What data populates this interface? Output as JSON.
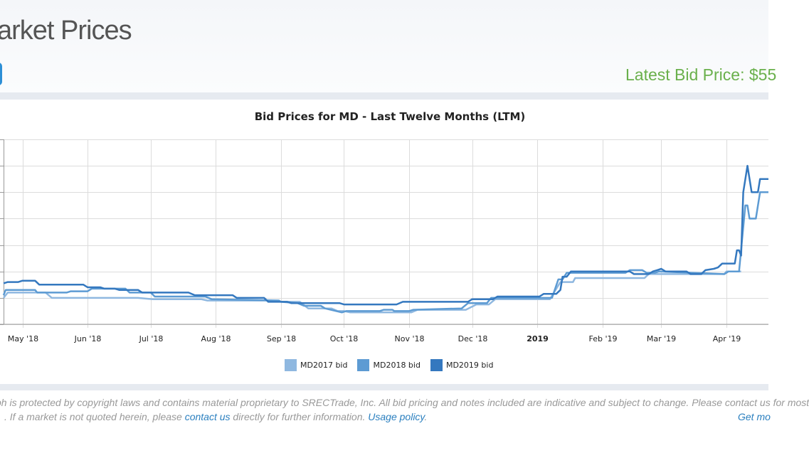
{
  "header": {
    "title": "arket Prices",
    "latest_price": "Latest Bid Price: $55"
  },
  "chart_data": {
    "type": "line",
    "title": "Bid Prices for MD - Last Twelve Months (LTM)",
    "x_tick_labels": [
      "May '18",
      "Jun '18",
      "Jul '18",
      "Aug '18",
      "Sep '18",
      "Oct '18",
      "Nov '18",
      "Dec '18",
      "2019",
      "Feb '19",
      "Mar '19",
      "Apr '19"
    ],
    "x_tick_dates": [
      "2018-05-01",
      "2018-06-01",
      "2018-07-01",
      "2018-08-01",
      "2018-09-01",
      "2018-10-01",
      "2018-11-01",
      "2018-12-01",
      "2019-01-01",
      "2019-02-01",
      "2019-03-01",
      "2019-04-01"
    ],
    "x_range": [
      "2018-04-22",
      "2019-04-21"
    ],
    "y_range": [
      0,
      7
    ],
    "grid": true,
    "legend_position": "bottom",
    "series": [
      {
        "name": "MD2017 bid",
        "color": "#8fb8e0",
        "points": [
          [
            "2018-04-22",
            1.0
          ],
          [
            "2018-04-24",
            1.2
          ],
          [
            "2018-05-12",
            1.2
          ],
          [
            "2018-05-15",
            1.0
          ],
          [
            "2018-06-18",
            1.0
          ],
          [
            "2018-06-25",
            1.0
          ],
          [
            "2018-07-02",
            0.95
          ],
          [
            "2018-07-25",
            0.95
          ],
          [
            "2018-07-28",
            0.9
          ],
          [
            "2018-08-31",
            0.9
          ],
          [
            "2018-09-01",
            0.85
          ],
          [
            "2018-09-10",
            0.85
          ],
          [
            "2018-09-14",
            0.6
          ],
          [
            "2018-09-25",
            0.6
          ],
          [
            "2018-09-28",
            0.5
          ],
          [
            "2018-10-01",
            0.5
          ],
          [
            "2018-10-04",
            0.45
          ],
          [
            "2018-11-02",
            0.45
          ],
          [
            "2018-11-05",
            0.55
          ],
          [
            "2018-11-28",
            0.55
          ],
          [
            "2018-12-03",
            0.75
          ],
          [
            "2018-12-09",
            0.75
          ],
          [
            "2018-12-12",
            0.95
          ],
          [
            "2019-01-07",
            0.95
          ],
          [
            "2019-01-12",
            1.6
          ],
          [
            "2019-01-18",
            1.6
          ],
          [
            "2019-01-19",
            1.75
          ],
          [
            "2019-02-21",
            1.75
          ],
          [
            "2019-02-23",
            1.9
          ],
          [
            "2019-03-31",
            1.9
          ],
          [
            "2019-04-01",
            2.0
          ],
          [
            "2019-04-08",
            2.0
          ]
        ]
      },
      {
        "name": "MD2018 bid",
        "color": "#5d9bd3",
        "points": [
          [
            "2018-04-22",
            1.1
          ],
          [
            "2018-04-23",
            1.3
          ],
          [
            "2018-05-07",
            1.3
          ],
          [
            "2018-05-08",
            1.2
          ],
          [
            "2018-05-22",
            1.2
          ],
          [
            "2018-05-24",
            1.25
          ],
          [
            "2018-06-01",
            1.25
          ],
          [
            "2018-06-03",
            1.35
          ],
          [
            "2018-06-19",
            1.35
          ],
          [
            "2018-06-21",
            1.2
          ],
          [
            "2018-07-01",
            1.2
          ],
          [
            "2018-07-03",
            1.05
          ],
          [
            "2018-07-27",
            1.05
          ],
          [
            "2018-07-30",
            0.95
          ],
          [
            "2018-08-31",
            0.9
          ],
          [
            "2018-09-01",
            0.85
          ],
          [
            "2018-09-09",
            0.8
          ],
          [
            "2018-09-12",
            0.7
          ],
          [
            "2018-09-20",
            0.7
          ],
          [
            "2018-09-22",
            0.6
          ],
          [
            "2018-09-30",
            0.45
          ],
          [
            "2018-10-02",
            0.5
          ],
          [
            "2018-10-18",
            0.5
          ],
          [
            "2018-10-20",
            0.55
          ],
          [
            "2018-10-24",
            0.55
          ],
          [
            "2018-10-25",
            0.5
          ],
          [
            "2018-11-01",
            0.5
          ],
          [
            "2018-11-03",
            0.55
          ],
          [
            "2018-11-26",
            0.6
          ],
          [
            "2018-11-29",
            0.8
          ],
          [
            "2018-12-08",
            0.8
          ],
          [
            "2018-12-10",
            1.0
          ],
          [
            "2019-01-08",
            1.0
          ],
          [
            "2019-01-11",
            1.7
          ],
          [
            "2019-01-13",
            1.7
          ],
          [
            "2019-01-15",
            1.95
          ],
          [
            "2019-02-12",
            1.95
          ],
          [
            "2019-02-14",
            2.05
          ],
          [
            "2019-02-20",
            2.05
          ],
          [
            "2019-02-22",
            1.95
          ],
          [
            "2019-02-26",
            1.95
          ],
          [
            "2019-02-28",
            2.0
          ],
          [
            "2019-03-31",
            1.9
          ],
          [
            "2019-04-02",
            2.0
          ],
          [
            "2019-04-07",
            2.0
          ],
          [
            "2019-04-10",
            4.5
          ],
          [
            "2019-04-11",
            4.5
          ],
          [
            "2019-04-12",
            4.0
          ],
          [
            "2019-04-15",
            4.0
          ],
          [
            "2019-04-17",
            5.0
          ],
          [
            "2019-04-21",
            5.0
          ]
        ]
      },
      {
        "name": "MD2019 bid",
        "color": "#3478bf",
        "points": [
          [
            "2018-04-22",
            1.55
          ],
          [
            "2018-04-24",
            1.6
          ],
          [
            "2018-04-29",
            1.6
          ],
          [
            "2018-05-01",
            1.65
          ],
          [
            "2018-05-07",
            1.65
          ],
          [
            "2018-05-09",
            1.5
          ],
          [
            "2018-05-30",
            1.5
          ],
          [
            "2018-06-01",
            1.4
          ],
          [
            "2018-06-07",
            1.4
          ],
          [
            "2018-06-09",
            1.35
          ],
          [
            "2018-06-14",
            1.35
          ],
          [
            "2018-06-16",
            1.3
          ],
          [
            "2018-06-25",
            1.3
          ],
          [
            "2018-06-27",
            1.2
          ],
          [
            "2018-07-19",
            1.2
          ],
          [
            "2018-07-22",
            1.1
          ],
          [
            "2018-08-09",
            1.1
          ],
          [
            "2018-08-11",
            1.0
          ],
          [
            "2018-08-24",
            1.0
          ],
          [
            "2018-08-26",
            0.85
          ],
          [
            "2018-09-04",
            0.85
          ],
          [
            "2018-09-06",
            0.8
          ],
          [
            "2018-09-29",
            0.8
          ],
          [
            "2018-10-01",
            0.75
          ],
          [
            "2018-10-26",
            0.75
          ],
          [
            "2018-10-29",
            0.85
          ],
          [
            "2018-11-29",
            0.85
          ],
          [
            "2018-12-01",
            0.95
          ],
          [
            "2018-12-11",
            0.95
          ],
          [
            "2018-12-13",
            1.05
          ],
          [
            "2019-01-02",
            1.05
          ],
          [
            "2019-01-04",
            1.15
          ],
          [
            "2019-01-10",
            1.15
          ],
          [
            "2019-01-12",
            1.3
          ],
          [
            "2019-01-13",
            1.8
          ],
          [
            "2019-01-15",
            1.8
          ],
          [
            "2019-01-17",
            2.0
          ],
          [
            "2019-02-14",
            2.0
          ],
          [
            "2019-02-16",
            1.9
          ],
          [
            "2019-02-23",
            1.9
          ],
          [
            "2019-02-25",
            2.0
          ],
          [
            "2019-02-27",
            2.05
          ],
          [
            "2019-03-01",
            2.1
          ],
          [
            "2019-03-03",
            2.0
          ],
          [
            "2019-03-13",
            2.0
          ],
          [
            "2019-03-15",
            1.9
          ],
          [
            "2019-03-20",
            1.9
          ],
          [
            "2019-03-22",
            2.05
          ],
          [
            "2019-03-26",
            2.1
          ],
          [
            "2019-03-28",
            2.15
          ],
          [
            "2019-03-30",
            2.3
          ],
          [
            "2019-04-05",
            2.3
          ],
          [
            "2019-04-06",
            2.8
          ],
          [
            "2019-04-07",
            2.8
          ],
          [
            "2019-04-08",
            2.6
          ],
          [
            "2019-04-09",
            5.0
          ],
          [
            "2019-04-11",
            6.0
          ],
          [
            "2019-04-13",
            5.0
          ],
          [
            "2019-04-16",
            5.0
          ],
          [
            "2019-04-17",
            5.5
          ],
          [
            "2019-04-21",
            5.5
          ]
        ]
      }
    ]
  },
  "legend": {
    "items": [
      {
        "label": "MD2017 bid",
        "color": "#8fb8e0"
      },
      {
        "label": "MD2018 bid",
        "color": "#5d9bd3"
      },
      {
        "label": "MD2019 bid",
        "color": "#3478bf"
      }
    ]
  },
  "footer": {
    "line1": "ph is protected by copyright laws and contains material proprietary to SRECTrade, Inc. All bid pricing and notes included are indicative and subject to change. Please contact us for most",
    "line2_prefix": ". If a market is not quoted herein, please ",
    "contact_link": "contact us",
    "line2_middle": " directly for further information. ",
    "usage_link": "Usage policy",
    "line2_suffix": ".",
    "get_more": "Get mo"
  }
}
